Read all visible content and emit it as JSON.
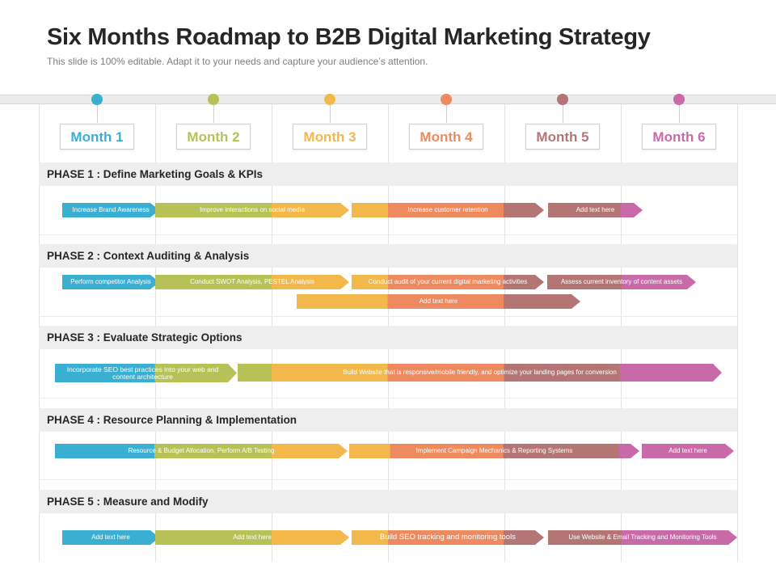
{
  "title": "Six Months Roadmap to B2B Digital Marketing Strategy",
  "subtitle": "This slide is 100% editable. Adapt it to your needs and capture your audience’s attention.",
  "colors": {
    "blue": "#3aafd1",
    "green": "#b6c257",
    "yellow": "#f2b84b",
    "orange": "#ee8a60",
    "brown": "#b47575",
    "pink": "#c86aa8"
  },
  "months": [
    "Month 1",
    "Month 2",
    "Month 3",
    "Month 4",
    "Month 5",
    "Month 6"
  ],
  "phases": [
    {
      "label": "PHASE 1 : Define Marketing Goals & KPIs",
      "tasks": [
        "Increase  Brand Awareness",
        "Improve interactions on social media",
        "Increase  customer retention",
        "Add text here"
      ]
    },
    {
      "label": "PHASE 2 : Context Auditing & Analysis",
      "tasks": [
        "Perform competitor Analysis",
        "Conduct SWOT Analysis,  PESTEL Analysis",
        "Conduct audit of your current digital marketing activities",
        "Assess  current inventory of content assets",
        "Add text here"
      ]
    },
    {
      "label": "PHASE 3 : Evaluate Strategic Options",
      "tasks": [
        "Incorporate SEO best practices into your web and content architecture",
        "Build Website that is responsive/mobile  friendly, and optimize your landing pages for conversion"
      ]
    },
    {
      "label": "PHASE 4 : Resource Planning & Implementation",
      "tasks": [
        "Resource  & Budget Allocation, Perform A/B Testing",
        "Implement Campaign Mechanics & Reporting Systems",
        "Add text here"
      ]
    },
    {
      "label": "PHASE 5 : Measure and Modify",
      "tasks": [
        "Add text here",
        "Add text here",
        "Build SEO tracking and monitoring tools",
        "Use Website & Email Tracking  and Monitoring Tools"
      ]
    }
  ]
}
